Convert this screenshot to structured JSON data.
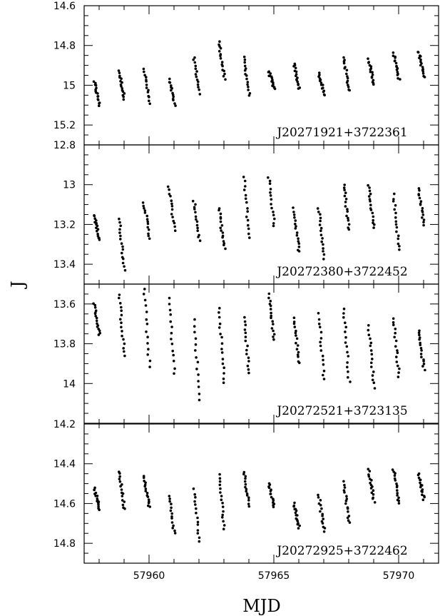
{
  "figure": {
    "xlabel": "MJD",
    "ylabel": "J"
  },
  "chart_data": [
    {
      "type": "scatter",
      "star": "J20271921+3722361",
      "ylim": [
        15.3,
        14.6
      ],
      "xlim": [
        57957.4,
        57971.6
      ],
      "ytick_labels": [
        "14.6",
        "14.8",
        "15",
        "15.2"
      ],
      "ytick_values": [
        14.6,
        14.8,
        15.0,
        15.2
      ],
      "groups": [
        {
          "x": 57958,
          "ymin": 14.98,
          "ymax": 15.1,
          "n": 16
        },
        {
          "x": 57959,
          "ymin": 14.93,
          "ymax": 15.07,
          "n": 16
        },
        {
          "x": 57960,
          "ymin": 14.92,
          "ymax": 15.09,
          "n": 14
        },
        {
          "x": 57961,
          "ymin": 14.97,
          "ymax": 15.1,
          "n": 14
        },
        {
          "x": 57962,
          "ymin": 14.86,
          "ymax": 15.04,
          "n": 14
        },
        {
          "x": 57963,
          "ymin": 14.78,
          "ymax": 14.97,
          "n": 16
        },
        {
          "x": 57964,
          "ymin": 14.86,
          "ymax": 15.05,
          "n": 15
        },
        {
          "x": 57965,
          "ymin": 14.93,
          "ymax": 15.02,
          "n": 16
        },
        {
          "x": 57966,
          "ymin": 14.89,
          "ymax": 15.02,
          "n": 16
        },
        {
          "x": 57967,
          "ymin": 14.94,
          "ymax": 15.05,
          "n": 15
        },
        {
          "x": 57968,
          "ymin": 14.86,
          "ymax": 15.03,
          "n": 16
        },
        {
          "x": 57969,
          "ymin": 14.87,
          "ymax": 15.0,
          "n": 16
        },
        {
          "x": 57970,
          "ymin": 14.84,
          "ymax": 14.97,
          "n": 16
        },
        {
          "x": 57971,
          "ymin": 14.83,
          "ymax": 14.96,
          "n": 16
        }
      ]
    },
    {
      "type": "scatter",
      "star": "J20272380+3722452",
      "ylim": [
        13.5,
        12.8
      ],
      "xlim": [
        57957.4,
        57971.6
      ],
      "ytick_labels": [
        "12.8",
        "13",
        "13.2",
        "13.4"
      ],
      "ytick_values": [
        12.8,
        13.0,
        13.2,
        13.4
      ],
      "groups": [
        {
          "x": 57958,
          "ymin": 13.15,
          "ymax": 13.28,
          "n": 16
        },
        {
          "x": 57959,
          "ymin": 13.17,
          "ymax": 13.43,
          "n": 16
        },
        {
          "x": 57960,
          "ymin": 13.09,
          "ymax": 13.27,
          "n": 14
        },
        {
          "x": 57961,
          "ymin": 13.01,
          "ymax": 13.23,
          "n": 14
        },
        {
          "x": 57962,
          "ymin": 13.08,
          "ymax": 13.28,
          "n": 14
        },
        {
          "x": 57963,
          "ymin": 13.12,
          "ymax": 13.32,
          "n": 16
        },
        {
          "x": 57964,
          "ymin": 12.96,
          "ymax": 13.27,
          "n": 15
        },
        {
          "x": 57965,
          "ymin": 12.96,
          "ymax": 13.21,
          "n": 14
        },
        {
          "x": 57966,
          "ymin": 13.12,
          "ymax": 13.34,
          "n": 16
        },
        {
          "x": 57967,
          "ymin": 13.12,
          "ymax": 13.37,
          "n": 16
        },
        {
          "x": 57968,
          "ymin": 13.0,
          "ymax": 13.23,
          "n": 16
        },
        {
          "x": 57969,
          "ymin": 13.0,
          "ymax": 13.22,
          "n": 16
        },
        {
          "x": 57970,
          "ymin": 13.05,
          "ymax": 13.33,
          "n": 16
        },
        {
          "x": 57971,
          "ymin": 13.02,
          "ymax": 13.2,
          "n": 16
        }
      ]
    },
    {
      "type": "scatter",
      "star": "J20272521+3723135",
      "ylim": [
        14.2,
        13.5
      ],
      "xlim": [
        57957.4,
        57971.6
      ],
      "ytick_labels": [
        "13.6",
        "13.8",
        "14"
      ],
      "ytick_values": [
        13.6,
        13.8,
        14.0
      ],
      "groups": [
        {
          "x": 57958,
          "ymin": 13.6,
          "ymax": 13.76,
          "n": 16
        },
        {
          "x": 57959,
          "ymin": 13.55,
          "ymax": 13.86,
          "n": 16
        },
        {
          "x": 57960,
          "ymin": 13.52,
          "ymax": 13.92,
          "n": 14
        },
        {
          "x": 57961,
          "ymin": 13.57,
          "ymax": 13.95,
          "n": 14
        },
        {
          "x": 57962,
          "ymin": 13.68,
          "ymax": 14.08,
          "n": 14
        },
        {
          "x": 57963,
          "ymin": 13.62,
          "ymax": 14.0,
          "n": 16
        },
        {
          "x": 57964,
          "ymin": 13.67,
          "ymax": 13.95,
          "n": 15
        },
        {
          "x": 57965,
          "ymin": 13.55,
          "ymax": 13.78,
          "n": 16
        },
        {
          "x": 57966,
          "ymin": 13.67,
          "ymax": 13.9,
          "n": 16
        },
        {
          "x": 57967,
          "ymin": 13.65,
          "ymax": 13.98,
          "n": 15
        },
        {
          "x": 57968,
          "ymin": 13.62,
          "ymax": 13.99,
          "n": 16
        },
        {
          "x": 57969,
          "ymin": 13.71,
          "ymax": 14.02,
          "n": 16
        },
        {
          "x": 57970,
          "ymin": 13.67,
          "ymax": 13.97,
          "n": 16
        },
        {
          "x": 57971,
          "ymin": 13.73,
          "ymax": 13.93,
          "n": 16
        }
      ]
    },
    {
      "type": "scatter",
      "star": "J20272925+3722462",
      "ylim": [
        14.9,
        14.2
      ],
      "xlim": [
        57957.4,
        57971.6
      ],
      "ytick_labels": [
        "14.2",
        "14.4",
        "14.6",
        "14.8"
      ],
      "ytick_values": [
        14.2,
        14.4,
        14.6,
        14.8
      ],
      "groups": [
        {
          "x": 57958,
          "ymin": 14.52,
          "ymax": 14.63,
          "n": 16
        },
        {
          "x": 57959,
          "ymin": 14.44,
          "ymax": 14.63,
          "n": 16
        },
        {
          "x": 57960,
          "ymin": 14.46,
          "ymax": 14.62,
          "n": 16
        },
        {
          "x": 57961,
          "ymin": 14.56,
          "ymax": 14.75,
          "n": 14
        },
        {
          "x": 57962,
          "ymin": 14.53,
          "ymax": 14.79,
          "n": 14
        },
        {
          "x": 57963,
          "ymin": 14.45,
          "ymax": 14.73,
          "n": 16
        },
        {
          "x": 57964,
          "ymin": 14.44,
          "ymax": 14.61,
          "n": 15
        },
        {
          "x": 57965,
          "ymin": 14.5,
          "ymax": 14.62,
          "n": 16
        },
        {
          "x": 57966,
          "ymin": 14.6,
          "ymax": 14.72,
          "n": 16
        },
        {
          "x": 57967,
          "ymin": 14.56,
          "ymax": 14.74,
          "n": 15
        },
        {
          "x": 57968,
          "ymin": 14.49,
          "ymax": 14.7,
          "n": 16
        },
        {
          "x": 57969,
          "ymin": 14.43,
          "ymax": 14.59,
          "n": 16
        },
        {
          "x": 57970,
          "ymin": 14.43,
          "ymax": 14.6,
          "n": 16
        },
        {
          "x": 57971,
          "ymin": 14.45,
          "ymax": 14.58,
          "n": 16
        }
      ]
    }
  ],
  "xticks": {
    "labels": [
      "57960",
      "57965",
      "57970"
    ],
    "values": [
      57960,
      57965,
      57970
    ]
  }
}
